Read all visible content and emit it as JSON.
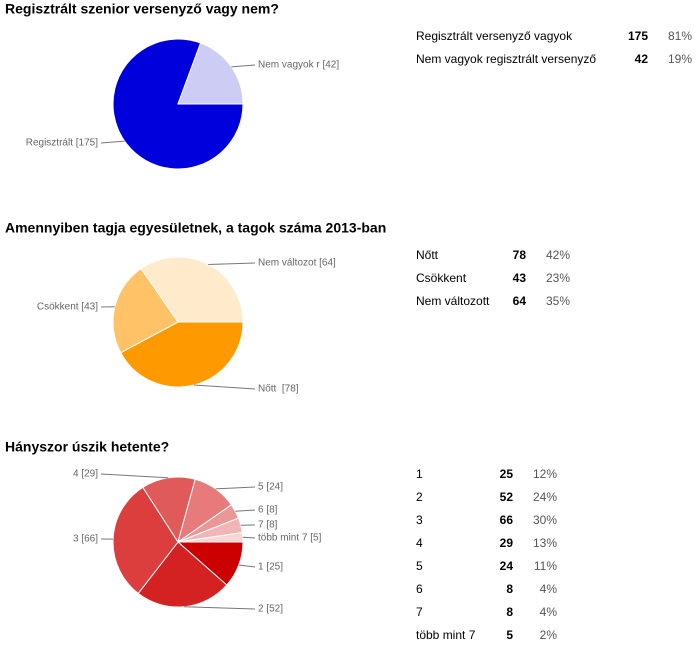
{
  "chart_data": [
    {
      "type": "pie",
      "title": "Regisztrált szenior versenyző vagy nem?",
      "categories": [
        "Regisztrált versenyző vagyok",
        "Nem vagyok regisztrált versenyző"
      ],
      "values": [
        175,
        42
      ],
      "shares": [
        "81%",
        "19%"
      ],
      "slice_labels": [
        "Regisztrált [175]",
        "Nem vagyok r [42]"
      ],
      "colors": [
        "#0000dd",
        "#ccccf5"
      ]
    },
    {
      "type": "pie",
      "title": "Amennyiben tagja egyesületnek, a tagok száma 2013-ban",
      "categories": [
        "Nőtt",
        "Csökkent",
        "Nem változott"
      ],
      "values": [
        78,
        43,
        64
      ],
      "shares": [
        "42%",
        "23%",
        "35%"
      ],
      "slice_labels": [
        "Nőtt  [78]",
        "Csökkent [43]",
        "Nem változot [64]"
      ],
      "colors": [
        "#ff9900",
        "#ffc266",
        "#ffebcc"
      ]
    },
    {
      "type": "pie",
      "title": "Hányszor úszik hetente?",
      "categories": [
        "1",
        "2",
        "3",
        "4",
        "5",
        "6",
        "7",
        "több mint 7"
      ],
      "values": [
        25,
        52,
        66,
        29,
        24,
        8,
        8,
        5
      ],
      "shares": [
        "12%",
        "24%",
        "30%",
        "13%",
        "11%",
        "4%",
        "4%",
        "2%"
      ],
      "slice_labels": [
        "1 [25]",
        "2 [52]",
        "3 [66]",
        "4 [29]",
        "5 [24]",
        "6 [8]",
        "7 [8]",
        "több mint 7 [5]"
      ],
      "colors": [
        "#cc0000",
        "#d42222",
        "#dc3e3e",
        "#e15a5a",
        "#e77a7a",
        "#ec9797",
        "#f2b5b5",
        "#f7d6d6"
      ]
    }
  ]
}
